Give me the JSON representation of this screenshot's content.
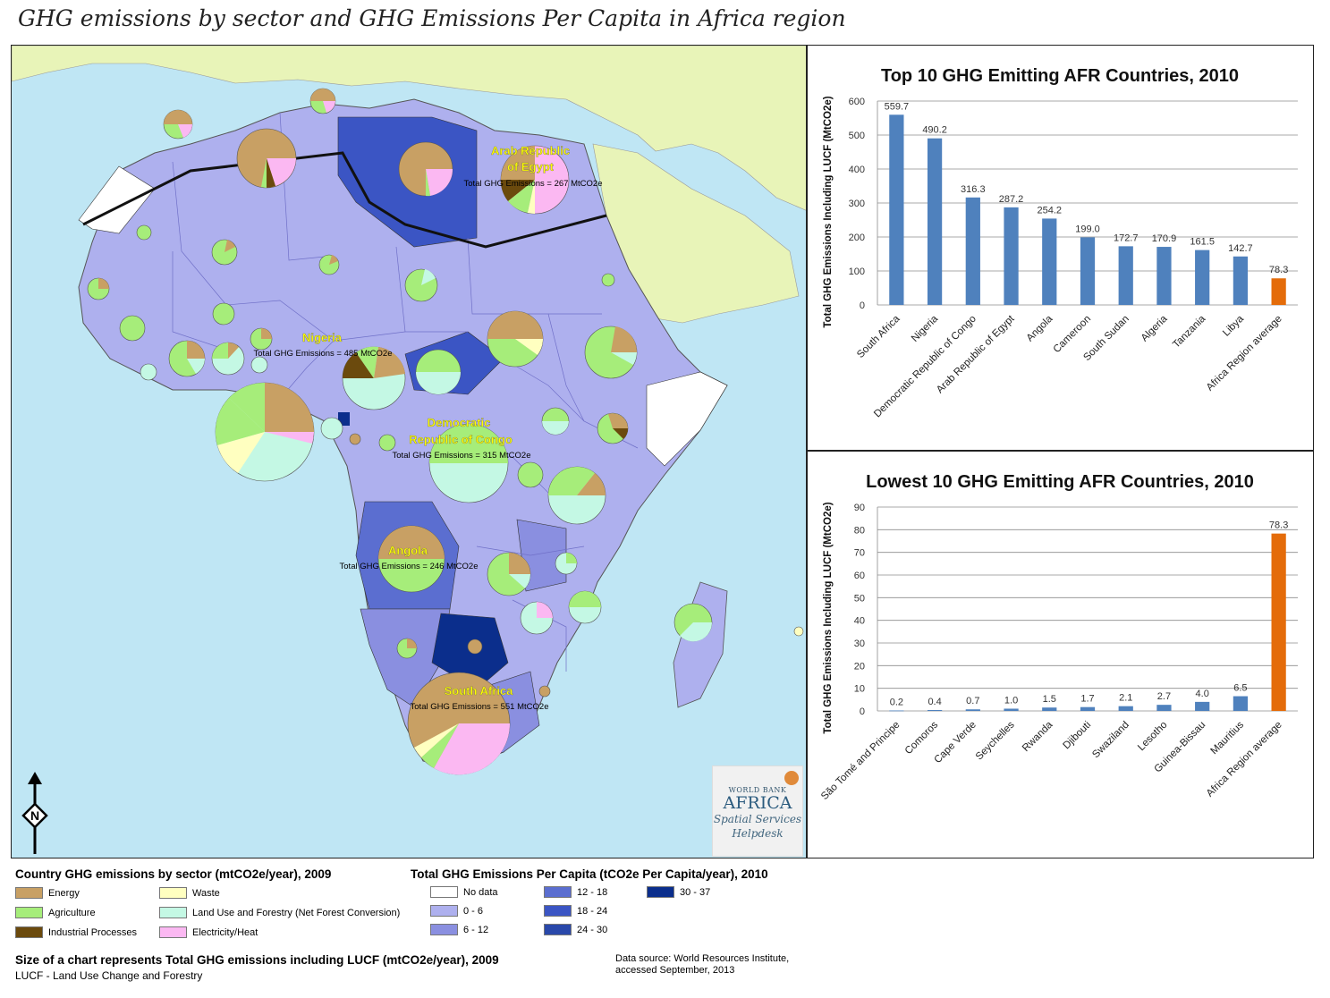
{
  "title": "GHG emissions by sector and GHG Emissions Per Capita in Africa region",
  "map": {
    "labels": [
      {
        "name": "Arab Republic of Egypt",
        "lines": [
          "Arab Republic",
          "of Egypt"
        ],
        "total": "Total GHG Emissions = 267 MtCO2e"
      },
      {
        "name": "Nigeria",
        "lines": [
          "Nigeria"
        ],
        "total": "Total GHG Emissions = 485 MtCO2e"
      },
      {
        "name": "Democratic Republic of Congo",
        "lines": [
          "Democratic",
          "Republic of Congo"
        ],
        "total": "Total GHG Emissions = 315 MtCO2e"
      },
      {
        "name": "Angola",
        "lines": [
          "Angola"
        ],
        "total": "Total GHG Emissions = 246 MtCO2e"
      },
      {
        "name": "South Africa",
        "lines": [
          "South Africa"
        ],
        "total": "Total GHG Emissions = 551 MtCO2e"
      }
    ],
    "colors": {
      "ocean": "#bfe6f4",
      "land_outside": "#e8f4b8",
      "border_region": "#111111"
    }
  },
  "logo": {
    "line1": "WORLD BANK",
    "line2": "AFRICA",
    "line3": "Spatial Services",
    "line4": "Helpdesk"
  },
  "north_arrow": "N",
  "legend_sector": {
    "title": "Country GHG emissions by sector (mtCO2e/year), 2009",
    "items": [
      {
        "label": "Energy",
        "color": "#c8a064"
      },
      {
        "label": "Waste",
        "color": "#ffffc0"
      },
      {
        "label": "Agriculture",
        "color": "#a6ed7a"
      },
      {
        "label": "Land Use and Forestry (Net Forest Conversion)",
        "color": "#c4f8e4"
      },
      {
        "label": "Industrial Processes",
        "color": "#6b4a0d"
      },
      {
        "label": "Electricity/Heat",
        "color": "#fbb8f2"
      }
    ]
  },
  "legend_percapita": {
    "title": "Total GHG Emissions Per Capita (tCO2e Per Capita/year), 2010",
    "items": [
      {
        "label": "No data",
        "color": "#ffffff"
      },
      {
        "label": "0 - 6",
        "color": "#aeb0ee"
      },
      {
        "label": "6 - 12",
        "color": "#8a8fe0"
      },
      {
        "label": "12 - 18",
        "color": "#5b6ed0"
      },
      {
        "label": "18 - 24",
        "color": "#3b55c4"
      },
      {
        "label": "24 - 30",
        "color": "#2948aa"
      },
      {
        "label": "30 - 37",
        "color": "#0b2e8c"
      }
    ]
  },
  "size_note": "Size of a chart represents Total GHG emissions including LUCF (mtCO2e/year), 2009",
  "lucf_note": "LUCF - Land Use Change and Forestry",
  "source": {
    "line1": "Data source: World Resources Institute,",
    "line2": "accessed September, 2013"
  },
  "chart_data": [
    {
      "type": "bar",
      "title": "Top 10 GHG Emitting AFR Countries, 2010",
      "xlabel": "",
      "ylabel": "Total GHG Emissions Including LUCF (MtCO2e)",
      "ylim": [
        0,
        600
      ],
      "yticks": [
        0,
        100,
        200,
        300,
        400,
        500,
        600
      ],
      "grid": true,
      "categories": [
        "South Africa",
        "Nigeria",
        "Democratic Republic of Congo",
        "Arab Republic of Egypt",
        "Angola",
        "Cameroon",
        "South Sudan",
        "Algeria",
        "Tanzania",
        "Libya",
        "Africa Region average"
      ],
      "values": [
        559.7,
        490.2,
        316.3,
        287.2,
        254.2,
        199.0,
        172.7,
        170.9,
        161.5,
        142.7,
        78.3
      ],
      "value_labels": [
        "559.7",
        "490.2",
        "316.3",
        "287.2",
        "254.2",
        "199.0",
        "172.7",
        "170.9",
        "161.5",
        "142.7",
        "78.3"
      ],
      "bar_color": "#4f81bd",
      "highlight_color": "#e46c0a",
      "highlight_index": 10
    },
    {
      "type": "bar",
      "title": "Lowest 10 GHG Emitting AFR Countries, 2010",
      "xlabel": "",
      "ylabel": "Total GHG Emissions Including LUCF (MtCO2e)",
      "ylim": [
        0,
        90
      ],
      "yticks": [
        0,
        10,
        20,
        30,
        40,
        50,
        60,
        70,
        80,
        90
      ],
      "grid": true,
      "categories": [
        "São Tomé and Principe",
        "Comoros",
        "Cape Verde",
        "Seychelles",
        "Rwanda",
        "Djibouti",
        "Swaziland",
        "Lesotho",
        "Guinea-Bissau",
        "Mauritius",
        "Africa Region average"
      ],
      "values": [
        0.2,
        0.4,
        0.7,
        1.0,
        1.5,
        1.7,
        2.1,
        2.7,
        4.0,
        6.5,
        78.3
      ],
      "value_labels": [
        "0.2",
        "0.4",
        "0.7",
        "1.0",
        "1.5",
        "1.7",
        "2.1",
        "2.7",
        "4.0",
        "6.5",
        "78.3"
      ],
      "bar_color": "#4f81bd",
      "highlight_color": "#e46c0a",
      "highlight_index": 10
    }
  ]
}
